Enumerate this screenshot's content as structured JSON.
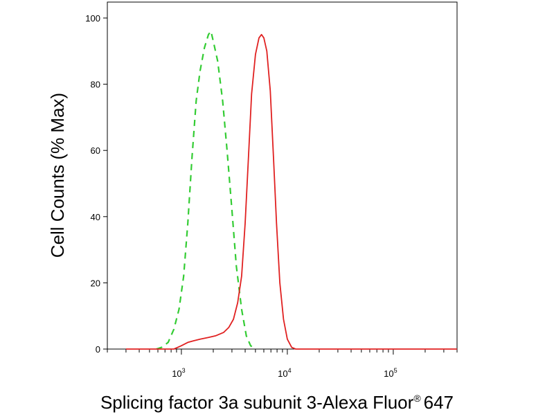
{
  "chart_data": {
    "type": "line",
    "xlabel": "Splicing factor 3a subunit 3-Alexa Fluor",
    "xlabel_superscript": "®",
    "xlabel_suffix": "647",
    "ylabel": "Cell Counts (% Max)",
    "x_scale": "log",
    "xlim": [
      200,
      400000
    ],
    "ylim": [
      0,
      100
    ],
    "y_ticks": [
      0,
      20,
      40,
      60,
      80,
      100
    ],
    "x_ticks": [
      {
        "value": 1000,
        "base": "10",
        "exp": "3"
      },
      {
        "value": 10000,
        "base": "10",
        "exp": "4"
      },
      {
        "value": 100000,
        "base": "10",
        "exp": "5"
      }
    ],
    "grid": false,
    "series": [
      {
        "color": "#33cc33",
        "dash": "dashed",
        "points": [
          [
            580,
            0
          ],
          [
            650,
            0.5
          ],
          [
            750,
            2
          ],
          [
            850,
            6
          ],
          [
            950,
            12
          ],
          [
            1050,
            22
          ],
          [
            1150,
            38
          ],
          [
            1260,
            58
          ],
          [
            1380,
            75
          ],
          [
            1500,
            84
          ],
          [
            1650,
            91
          ],
          [
            1800,
            95
          ],
          [
            1900,
            96
          ],
          [
            2000,
            93
          ],
          [
            2200,
            87
          ],
          [
            2450,
            75
          ],
          [
            2700,
            60
          ],
          [
            3000,
            42
          ],
          [
            3300,
            25
          ],
          [
            3700,
            12
          ],
          [
            4100,
            4
          ],
          [
            4500,
            1
          ],
          [
            5000,
            0
          ]
        ]
      },
      {
        "color": "#e02020",
        "dash": "solid",
        "points": [
          [
            300,
            0
          ],
          [
            700,
            0
          ],
          [
            850,
            0
          ],
          [
            1000,
            1
          ],
          [
            1150,
            2
          ],
          [
            1300,
            2.5
          ],
          [
            1500,
            3
          ],
          [
            1800,
            3.5
          ],
          [
            2100,
            4
          ],
          [
            2500,
            5
          ],
          [
            2800,
            6.5
          ],
          [
            3100,
            9
          ],
          [
            3400,
            14
          ],
          [
            3700,
            22
          ],
          [
            4000,
            38
          ],
          [
            4300,
            58
          ],
          [
            4600,
            77
          ],
          [
            5000,
            89
          ],
          [
            5400,
            94
          ],
          [
            5700,
            95
          ],
          [
            6000,
            94
          ],
          [
            6400,
            90
          ],
          [
            6900,
            78
          ],
          [
            7400,
            58
          ],
          [
            7900,
            38
          ],
          [
            8500,
            20
          ],
          [
            9200,
            9
          ],
          [
            10000,
            3
          ],
          [
            11000,
            0.5
          ],
          [
            12000,
            0
          ],
          [
            400000,
            0
          ]
        ]
      }
    ]
  }
}
